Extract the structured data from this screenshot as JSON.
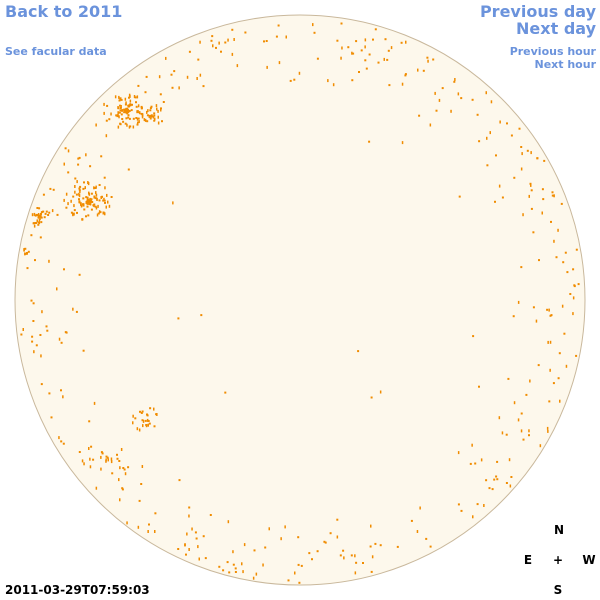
{
  "header": {
    "back": "Back to 2011",
    "facular": "See facular data",
    "previous_day": "Previous day",
    "next_day": "Next day",
    "previous_hour": "Previous hour",
    "next_hour": "Next hour"
  },
  "timestamp": "2011-03-29T07:59:03",
  "compass": {
    "north": "N",
    "east": "E",
    "center": "+",
    "west": "W",
    "south": "S"
  }
}
